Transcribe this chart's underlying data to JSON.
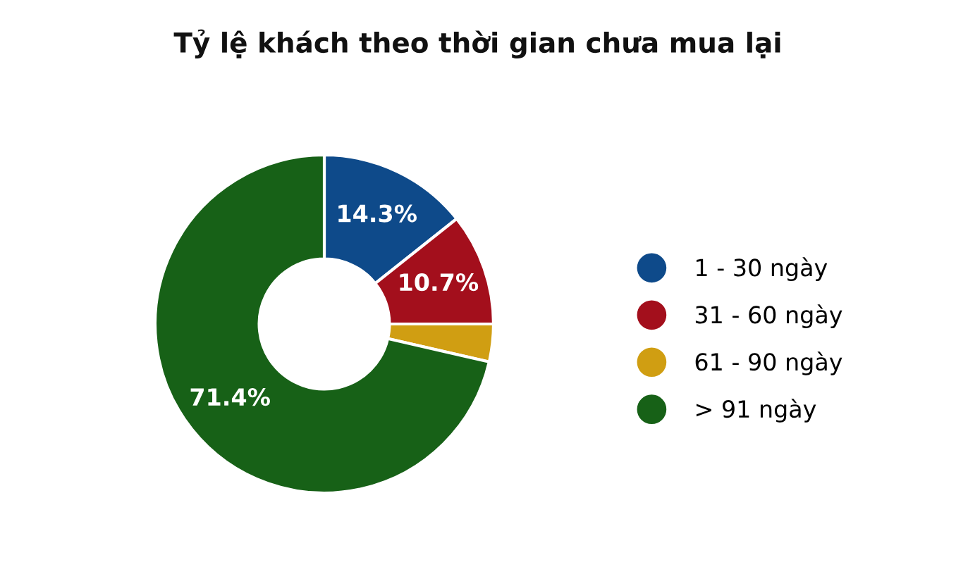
{
  "chart_data": {
    "type": "donut",
    "title": "Tỷ lệ khách theo thời gian chưa mua lại",
    "categories": [
      "1 - 30 ngày",
      "31 - 60 ngày",
      "61 - 90 ngày",
      "> 91 ngày"
    ],
    "values": [
      14.3,
      10.7,
      3.6,
      71.4
    ],
    "colors": [
      "#0e4a8a",
      "#a30f1c",
      "#d09e12",
      "#176117"
    ],
    "value_labels": [
      "14.3%",
      "10.7%",
      null,
      "71.4%"
    ],
    "legend": "right"
  }
}
